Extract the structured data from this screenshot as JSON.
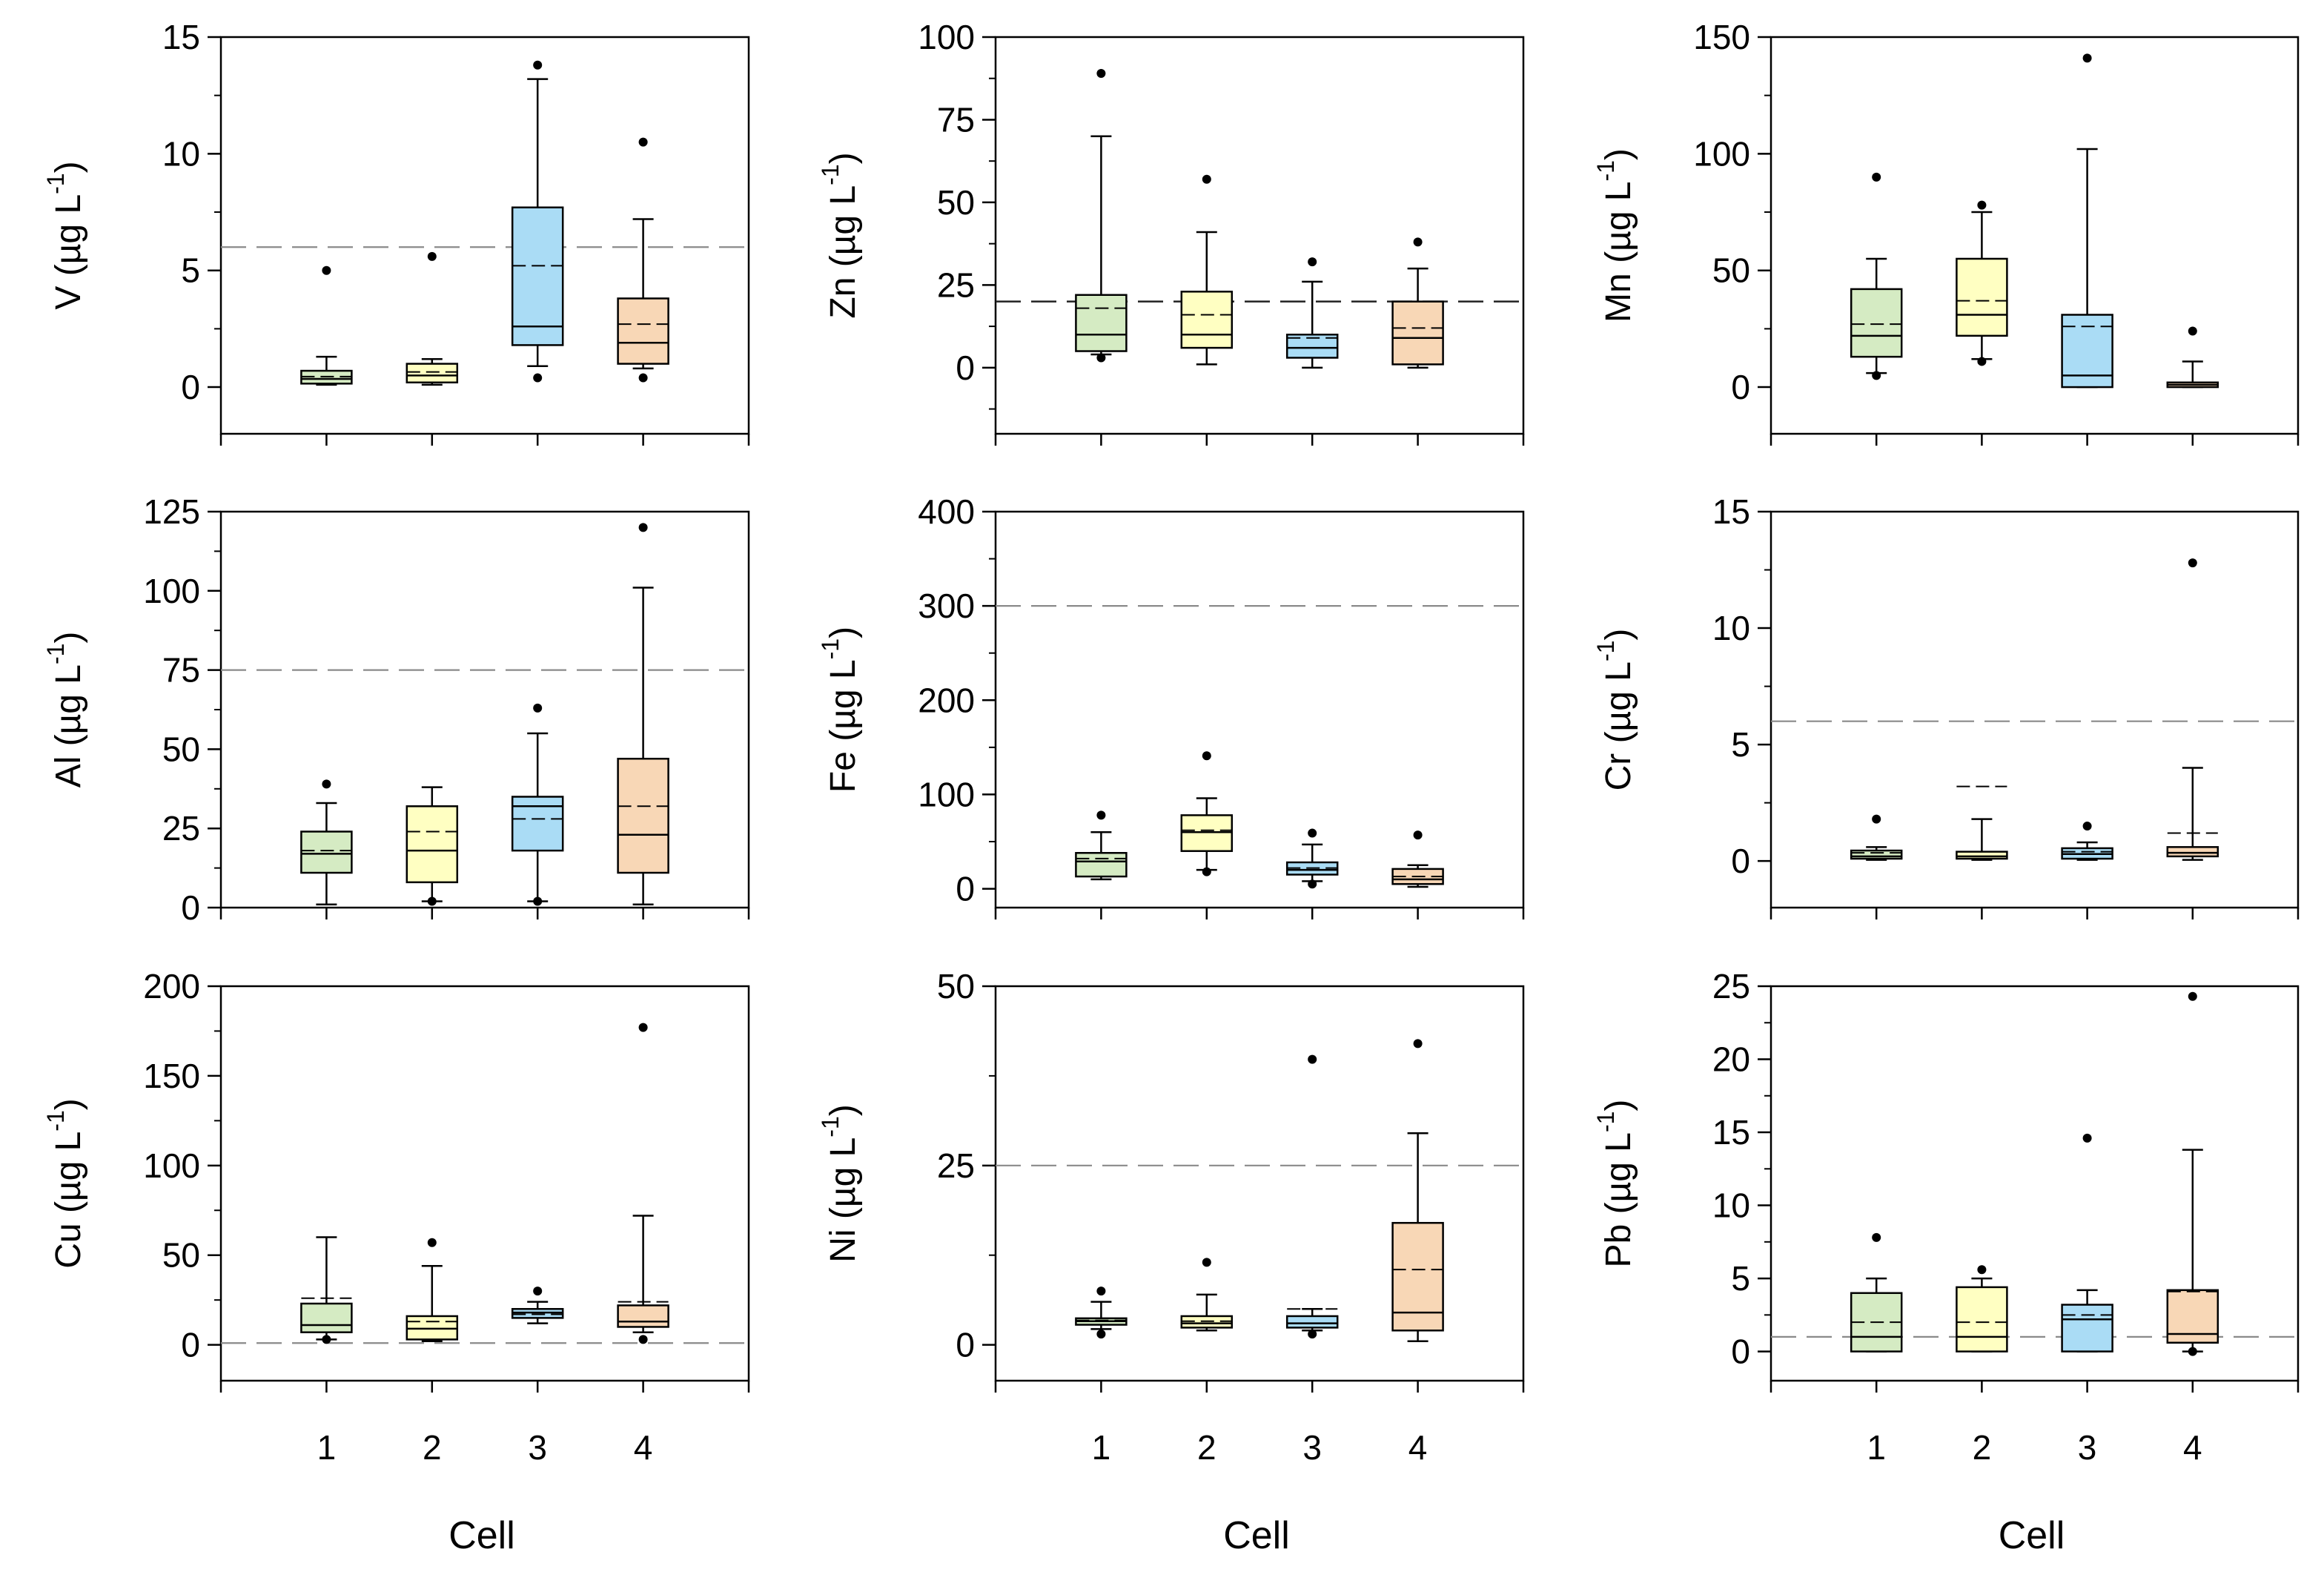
{
  "chart_data": {
    "type": "box",
    "x_title": "Cell",
    "categories": [
      "1",
      "2",
      "3",
      "4"
    ],
    "category_colors": [
      "#d5ebc3",
      "#ffffc2",
      "#aadcf5",
      "#f8d7b6"
    ],
    "unit_text": "(µg L",
    "unit_exponent": "-1",
    "unit_close": ")",
    "panels": [
      {
        "element": "V",
        "ylim": [
          -2,
          15
        ],
        "yticks": [
          "0",
          "5",
          "10",
          "15"
        ],
        "ytick_values": [
          0,
          5,
          10,
          15
        ],
        "minor_step": 2.5,
        "reference_line": 6,
        "ref_style": "gray",
        "boxes": [
          {
            "min": 0.1,
            "q1": 0.15,
            "median": 0.35,
            "mean": 0.45,
            "q3": 0.7,
            "max": 1.3,
            "outliers": [
              5.0
            ]
          },
          {
            "min": 0.1,
            "q1": 0.2,
            "median": 0.5,
            "mean": 0.65,
            "q3": 1.0,
            "max": 1.2,
            "outliers": [
              5.6
            ]
          },
          {
            "min": 0.9,
            "q1": 1.8,
            "median": 2.6,
            "mean": 5.2,
            "q3": 7.7,
            "max": 13.2,
            "outliers": [
              0.4,
              13.8
            ]
          },
          {
            "min": 0.8,
            "q1": 1.0,
            "median": 1.9,
            "mean": 2.7,
            "q3": 3.8,
            "max": 7.2,
            "outliers": [
              0.4,
              10.5
            ]
          }
        ]
      },
      {
        "element": "Zn",
        "ylim": [
          -20,
          100
        ],
        "yticks": [
          "0",
          "25",
          "50",
          "75",
          "100"
        ],
        "ytick_values": [
          0,
          25,
          50,
          75,
          100
        ],
        "minor_step": 12.5,
        "reference_line": 20,
        "ref_style": "dark",
        "boxes": [
          {
            "min": 4,
            "q1": 5,
            "median": 10,
            "mean": 18,
            "q3": 22,
            "max": 70,
            "outliers": [
              3,
              89
            ]
          },
          {
            "min": 1,
            "q1": 6,
            "median": 10,
            "mean": 16,
            "q3": 23,
            "max": 41,
            "outliers": [
              57
            ]
          },
          {
            "min": 0,
            "q1": 3,
            "median": 6,
            "mean": 9,
            "q3": 10,
            "max": 26,
            "outliers": [
              32
            ]
          },
          {
            "min": 0,
            "q1": 1,
            "median": 9,
            "mean": 12,
            "q3": 20,
            "max": 30,
            "outliers": [
              38
            ]
          }
        ]
      },
      {
        "element": "Mn",
        "ylim": [
          -20,
          150
        ],
        "yticks": [
          "0",
          "50",
          "100",
          "150"
        ],
        "ytick_values": [
          0,
          50,
          100,
          150
        ],
        "minor_step": 25,
        "reference_line": null,
        "ref_style": "none",
        "boxes": [
          {
            "min": 6,
            "q1": 13,
            "median": 22,
            "mean": 27,
            "q3": 42,
            "max": 55,
            "outliers": [
              5,
              90
            ]
          },
          {
            "min": 12,
            "q1": 22,
            "median": 31,
            "mean": 37,
            "q3": 55,
            "max": 75,
            "outliers": [
              11,
              78
            ]
          },
          {
            "min": 0,
            "q1": 0,
            "median": 5,
            "mean": 26,
            "q3": 31,
            "max": 102,
            "outliers": [
              141
            ]
          },
          {
            "min": 0,
            "q1": 0,
            "median": 1,
            "mean": 2,
            "q3": 2,
            "max": 11,
            "outliers": [
              24
            ]
          }
        ]
      },
      {
        "element": "Al",
        "ylim": [
          0,
          125
        ],
        "yticks": [
          "0",
          "25",
          "50",
          "75",
          "100",
          "125"
        ],
        "ytick_values": [
          0,
          25,
          50,
          75,
          100,
          125
        ],
        "minor_step": 12.5,
        "reference_line": 75,
        "ref_style": "gray",
        "boxes": [
          {
            "min": 1,
            "q1": 11,
            "median": 17,
            "mean": 18,
            "q3": 24,
            "max": 33,
            "outliers": [
              39
            ]
          },
          {
            "min": 2,
            "q1": 8,
            "median": 18,
            "mean": 24,
            "q3": 32,
            "max": 38,
            "outliers": [
              2
            ]
          },
          {
            "min": 2,
            "q1": 18,
            "median": 32,
            "mean": 28,
            "q3": 35,
            "max": 55,
            "outliers": [
              2,
              63
            ]
          },
          {
            "min": 1,
            "q1": 11,
            "median": 23,
            "mean": 32,
            "q3": 47,
            "max": 101,
            "outliers": [
              120
            ]
          }
        ]
      },
      {
        "element": "Fe",
        "ylim": [
          -20,
          400
        ],
        "yticks": [
          "0",
          "100",
          "200",
          "300",
          "400"
        ],
        "ytick_values": [
          0,
          100,
          200,
          300,
          400
        ],
        "minor_step": 50,
        "reference_line": 300,
        "ref_style": "gray",
        "boxes": [
          {
            "min": 10,
            "q1": 13,
            "median": 29,
            "mean": 32,
            "q3": 38,
            "max": 60,
            "outliers": [
              78
            ]
          },
          {
            "min": 20,
            "q1": 40,
            "median": 60,
            "mean": 62,
            "q3": 78,
            "max": 96,
            "outliers": [
              18,
              141
            ]
          },
          {
            "min": 8,
            "q1": 15,
            "median": 20,
            "mean": 22,
            "q3": 28,
            "max": 47,
            "outliers": [
              5,
              59
            ]
          },
          {
            "min": 2,
            "q1": 5,
            "median": 10,
            "mean": 13,
            "q3": 21,
            "max": 25,
            "outliers": [
              57
            ]
          }
        ]
      },
      {
        "element": "Cr",
        "ylim": [
          -2,
          15
        ],
        "yticks": [
          "0",
          "5",
          "10",
          "15"
        ],
        "ytick_values": [
          0,
          5,
          10,
          15
        ],
        "minor_step": 2.5,
        "reference_line": 6,
        "ref_style": "gray",
        "boxes": [
          {
            "min": 0.05,
            "q1": 0.1,
            "median": 0.2,
            "mean": 0.35,
            "q3": 0.45,
            "max": 0.6,
            "outliers": [
              1.8
            ]
          },
          {
            "min": 0.05,
            "q1": 0.1,
            "median": 0.2,
            "mean": 3.2,
            "q3": 0.4,
            "max": 1.8,
            "outliers": []
          },
          {
            "min": 0.05,
            "q1": 0.1,
            "median": 0.3,
            "mean": 0.4,
            "q3": 0.55,
            "max": 0.8,
            "outliers": [
              1.5
            ]
          },
          {
            "min": 0.05,
            "q1": 0.2,
            "median": 0.35,
            "mean": 1.2,
            "q3": 0.6,
            "max": 4.0,
            "outliers": [
              12.8
            ]
          }
        ]
      },
      {
        "element": "Cu",
        "ylim": [
          -20,
          200
        ],
        "yticks": [
          "0",
          "50",
          "100",
          "150",
          "200"
        ],
        "ytick_values": [
          0,
          50,
          100,
          150,
          200
        ],
        "minor_step": 25,
        "reference_line": 1,
        "ref_style": "gray",
        "boxes": [
          {
            "min": 3,
            "q1": 7,
            "median": 11,
            "mean": 26,
            "q3": 23,
            "max": 60,
            "outliers": [
              3
            ]
          },
          {
            "min": 2,
            "q1": 3,
            "median": 9,
            "mean": 13,
            "q3": 16,
            "max": 44,
            "outliers": [
              57
            ]
          },
          {
            "min": 12,
            "q1": 15,
            "median": 18,
            "mean": 17,
            "q3": 20,
            "max": 24,
            "outliers": [
              30
            ]
          },
          {
            "min": 7,
            "q1": 10,
            "median": 13,
            "mean": 24,
            "q3": 22,
            "max": 72,
            "outliers": [
              3,
              177
            ]
          }
        ]
      },
      {
        "element": "Ni",
        "ylim": [
          -5,
          50
        ],
        "yticks": [
          "0",
          "25",
          "50"
        ],
        "ytick_values": [
          0,
          25,
          50
        ],
        "minor_step": 12.5,
        "reference_line": 25,
        "ref_style": "gray",
        "boxes": [
          {
            "min": 2.2,
            "q1": 2.8,
            "median": 3.3,
            "mean": 3.4,
            "q3": 3.7,
            "max": 6.0,
            "outliers": [
              1.5,
              7.5
            ]
          },
          {
            "min": 2.0,
            "q1": 2.4,
            "median": 3.0,
            "mean": 3.3,
            "q3": 4.0,
            "max": 7.0,
            "outliers": [
              11.5
            ]
          },
          {
            "min": 2.0,
            "q1": 2.4,
            "median": 3.0,
            "mean": 5.0,
            "q3": 4.0,
            "max": 5.0,
            "outliers": [
              1.5,
              39.8
            ]
          },
          {
            "min": 0.5,
            "q1": 2.0,
            "median": 4.5,
            "mean": 10.5,
            "q3": 17.0,
            "max": 29.5,
            "outliers": [
              42.0
            ]
          }
        ]
      },
      {
        "element": "Pb",
        "ylim": [
          -2,
          25
        ],
        "yticks": [
          "0",
          "5",
          "10",
          "15",
          "20",
          "25"
        ],
        "ytick_values": [
          0,
          5,
          10,
          15,
          20,
          25
        ],
        "minor_step": 2.5,
        "reference_line": 1,
        "ref_style": "gray",
        "boxes": [
          {
            "min": 0,
            "q1": 0,
            "median": 1,
            "mean": 2,
            "q3": 4,
            "max": 5,
            "outliers": [
              7.8
            ]
          },
          {
            "min": 0,
            "q1": 0,
            "median": 1,
            "mean": 2,
            "q3": 4.4,
            "max": 5,
            "outliers": [
              5.6
            ]
          },
          {
            "min": 0,
            "q1": 0,
            "median": 2.2,
            "mean": 2.5,
            "q3": 3.2,
            "max": 4.2,
            "outliers": [
              14.6
            ]
          },
          {
            "min": 0,
            "q1": 0.6,
            "median": 1.2,
            "mean": 4.1,
            "q3": 4.2,
            "max": 13.8,
            "outliers": [
              0,
              24.3
            ]
          }
        ]
      }
    ]
  }
}
